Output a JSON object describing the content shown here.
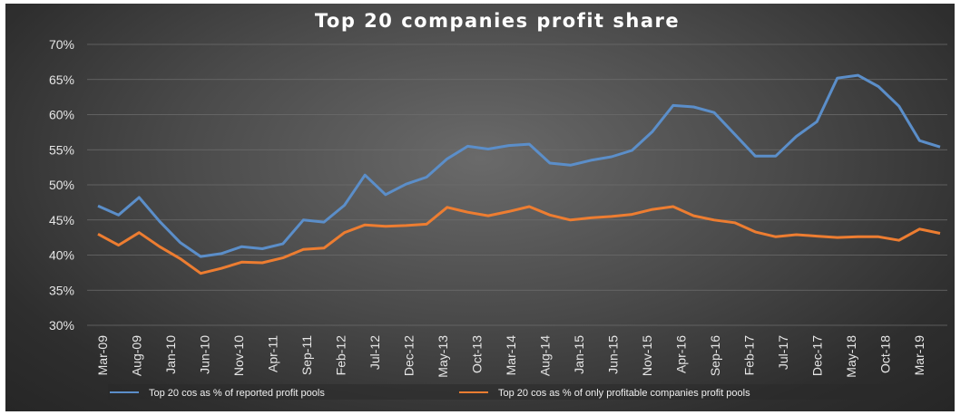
{
  "chart_data": {
    "type": "line",
    "title": "Top 20 companies profit share",
    "xlabel": "",
    "ylabel": "",
    "ylim": [
      30,
      70
    ],
    "y_ticks": [
      "30%",
      "35%",
      "40%",
      "45%",
      "50%",
      "55%",
      "60%",
      "65%",
      "70%"
    ],
    "y_tick_values": [
      30,
      35,
      40,
      45,
      50,
      55,
      60,
      65,
      70
    ],
    "x_tick_labels": [
      "Mar-09",
      "Aug-09",
      "Jan-10",
      "Jun-10",
      "Nov-10",
      "Apr-11",
      "Sep-11",
      "Feb-12",
      "Jul-12",
      "Dec-12",
      "May-13",
      "Oct-13",
      "Mar-14",
      "Aug-14",
      "Jan-15",
      "Jun-15",
      "Nov-15",
      "Apr-16",
      "Sep-16",
      "Feb-17",
      "Jul-17",
      "Dec-17",
      "May-18",
      "Oct-18",
      "Mar-19"
    ],
    "legend_position": "bottom",
    "series": [
      {
        "name": "Top 20 cos as % of reported profit pools",
        "color": "#5b8ec9",
        "values": [
          47.0,
          45.7,
          48.2,
          44.8,
          41.8,
          39.8,
          40.2,
          41.2,
          40.9,
          41.6,
          45.0,
          44.7,
          47.1,
          51.4,
          48.6,
          50.1,
          51.1,
          53.7,
          55.5,
          55.1,
          55.6,
          55.8,
          53.1,
          52.8,
          53.5,
          54.0,
          54.9,
          57.6,
          61.3,
          61.1,
          60.3,
          57.2,
          54.1,
          54.1,
          56.9,
          59.0,
          65.2,
          65.6,
          64.0,
          61.2,
          56.3,
          55.4
        ]
      },
      {
        "name": "Top 20 cos as % of only profitable companies profit pools",
        "color": "#ed7d31",
        "values": [
          43.0,
          41.4,
          43.2,
          41.2,
          39.5,
          37.4,
          38.1,
          39.0,
          38.9,
          39.6,
          40.8,
          41.0,
          43.2,
          44.3,
          44.1,
          44.2,
          44.4,
          46.8,
          46.1,
          45.6,
          46.2,
          46.9,
          45.7,
          45.0,
          45.3,
          45.5,
          45.8,
          46.5,
          46.9,
          45.6,
          45.0,
          44.6,
          43.3,
          42.6,
          42.9,
          42.7,
          42.5,
          42.6,
          42.6,
          42.1,
          43.7,
          43.1
        ]
      }
    ]
  }
}
